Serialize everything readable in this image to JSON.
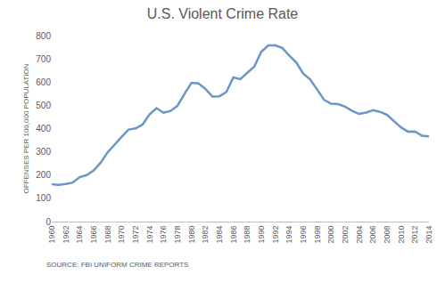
{
  "chart_data": {
    "type": "line",
    "title": "U.S. Violent Crime Rate",
    "y_label": "OFFENSES PER 100,000 POPULATION",
    "annotations": [
      "SOURCE: FBI UNIFORM CRIME REPORTS"
    ],
    "x": [
      1960,
      1961,
      1962,
      1963,
      1964,
      1965,
      1966,
      1967,
      1968,
      1969,
      1970,
      1971,
      1972,
      1973,
      1974,
      1975,
      1976,
      1977,
      1978,
      1979,
      1980,
      1981,
      1982,
      1983,
      1984,
      1985,
      1986,
      1987,
      1988,
      1989,
      1990,
      1991,
      1992,
      1993,
      1994,
      1995,
      1996,
      1997,
      1998,
      1999,
      2000,
      2001,
      2002,
      2003,
      2004,
      2005,
      2006,
      2007,
      2008,
      2009,
      2010,
      2011,
      2012,
      2013,
      2014
    ],
    "values": [
      161,
      158,
      162,
      168,
      191,
      200,
      220,
      253,
      298,
      329,
      364,
      396,
      401,
      417,
      461,
      488,
      468,
      476,
      498,
      549,
      597,
      594,
      571,
      538,
      539,
      557,
      620,
      613,
      641,
      667,
      730,
      758,
      758,
      747,
      714,
      685,
      637,
      611,
      568,
      523,
      507,
      505,
      494,
      476,
      463,
      469,
      479,
      472,
      459,
      432,
      405,
      387,
      388,
      369,
      366
    ],
    "color": "#6a95c8",
    "xlim": [
      1960,
      2014
    ],
    "xticks": [
      1960,
      1962,
      1964,
      1966,
      1968,
      1970,
      1972,
      1974,
      1976,
      1978,
      1980,
      1982,
      1984,
      1986,
      1988,
      1990,
      1992,
      1994,
      1996,
      1998,
      2000,
      2002,
      2004,
      2006,
      2008,
      2010,
      2012,
      2014
    ],
    "ylim": [
      0,
      800
    ],
    "yticks": [
      0,
      100,
      200,
      300,
      400,
      500,
      600,
      700,
      800
    ],
    "grid": false
  }
}
